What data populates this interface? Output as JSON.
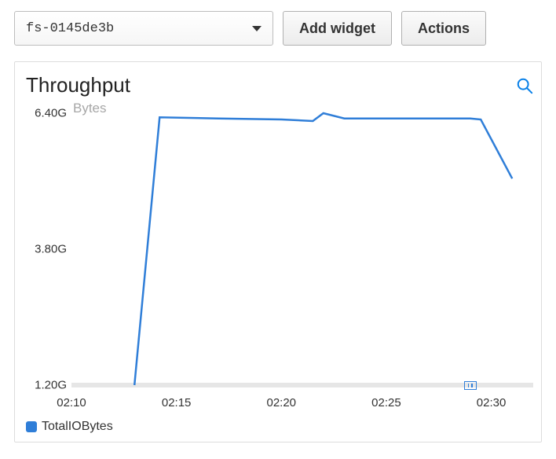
{
  "toolbar": {
    "dropdown_value": "fs-0145de3b",
    "add_widget_label": "Add widget",
    "actions_label": "Actions"
  },
  "chart": {
    "type": "line",
    "title": "Throughput",
    "y_axis_title": "Bytes",
    "line_color": "#2f7ed8",
    "line_width": 2.5,
    "background_color": "#ffffff",
    "baseline_color": "#e6e6e6",
    "tick_color": "#333333",
    "y_title_color": "#a7a7a7",
    "ylim": [
      1.2,
      6.4
    ],
    "yticks": [
      {
        "value": 6.4,
        "label": "6.40G"
      },
      {
        "value": 3.8,
        "label": "3.80G"
      },
      {
        "value": 1.2,
        "label": "1.20G"
      }
    ],
    "xlim": [
      130,
      152
    ],
    "xticks": [
      {
        "value": 130,
        "label": "02:10"
      },
      {
        "value": 135,
        "label": "02:15"
      },
      {
        "value": 140,
        "label": "02:20"
      },
      {
        "value": 145,
        "label": "02:25"
      },
      {
        "value": 150,
        "label": "02:30"
      }
    ],
    "marker_x": 149,
    "series": [
      {
        "name": "TotalIOBytes",
        "color": "#2f7ed8",
        "data": [
          {
            "x": 133.0,
            "y": 1.2
          },
          {
            "x": 134.2,
            "y": 6.32
          },
          {
            "x": 137.0,
            "y": 6.3
          },
          {
            "x": 140.0,
            "y": 6.28
          },
          {
            "x": 141.5,
            "y": 6.25
          },
          {
            "x": 142.0,
            "y": 6.4
          },
          {
            "x": 143.0,
            "y": 6.3
          },
          {
            "x": 146.0,
            "y": 6.3
          },
          {
            "x": 149.0,
            "y": 6.3
          },
          {
            "x": 149.5,
            "y": 6.28
          },
          {
            "x": 151.0,
            "y": 5.15
          }
        ]
      }
    ],
    "legend": {
      "label": "TotalIOBytes",
      "swatch_color": "#2f7ed8"
    }
  }
}
